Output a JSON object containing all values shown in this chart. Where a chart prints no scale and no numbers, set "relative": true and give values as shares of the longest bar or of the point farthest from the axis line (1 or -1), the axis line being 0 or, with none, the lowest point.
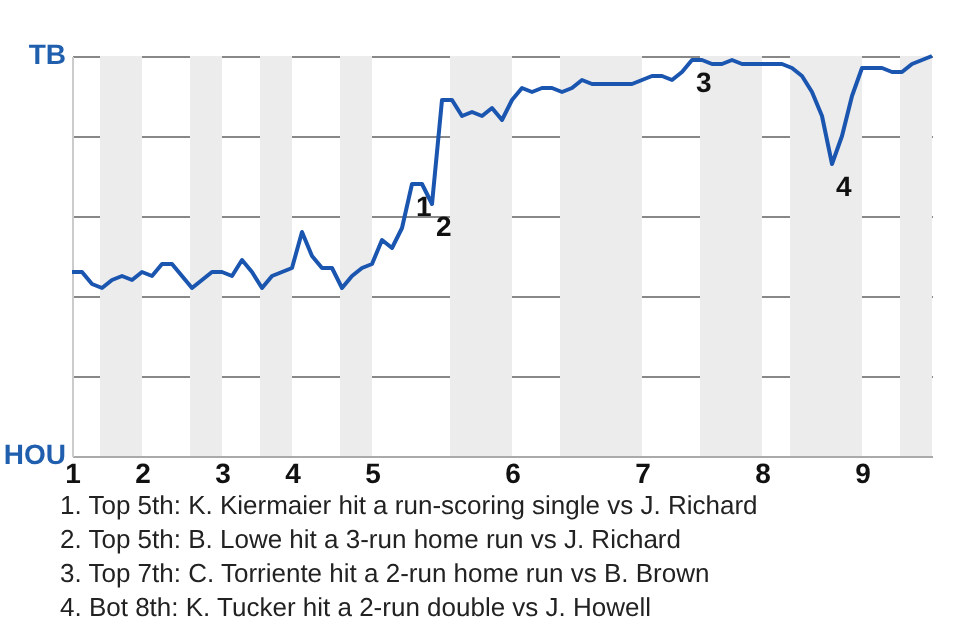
{
  "chart_data": {
    "type": "line",
    "relative": true,
    "categories": [
      "1",
      null,
      null,
      null,
      null,
      null,
      null,
      "2",
      null,
      null,
      null,
      null,
      null,
      null,
      null,
      "3",
      null,
      null,
      null,
      null,
      null,
      null,
      "4",
      null,
      null,
      null,
      null,
      null,
      null,
      null,
      "5",
      null,
      null,
      null,
      null,
      null,
      null,
      null,
      null,
      null,
      null,
      null,
      null,
      null,
      "6",
      null,
      null,
      null,
      null,
      null,
      null,
      null,
      null,
      null,
      null,
      null,
      null,
      "7",
      null,
      null,
      null,
      null,
      null,
      null,
      null,
      null,
      null,
      null,
      null,
      "8",
      null,
      null,
      null,
      null,
      null,
      null,
      null,
      null,
      null,
      "9",
      null,
      null,
      null,
      null,
      null,
      null,
      null
    ],
    "series": [
      {
        "color": "#1a56b0",
        "values": [
          0.46,
          0.46,
          0.43,
          0.42,
          0.44,
          0.45,
          0.44,
          0.46,
          0.45,
          0.48,
          0.48,
          0.45,
          0.42,
          0.44,
          0.46,
          0.46,
          0.45,
          0.49,
          0.46,
          0.42,
          0.45,
          0.46,
          0.47,
          0.56,
          0.5,
          0.47,
          0.47,
          0.42,
          0.45,
          0.47,
          0.48,
          0.54,
          0.52,
          0.57,
          0.68,
          0.68,
          0.63,
          0.89,
          0.89,
          0.85,
          0.86,
          0.85,
          0.87,
          0.84,
          0.89,
          0.92,
          0.91,
          0.92,
          0.92,
          0.91,
          0.92,
          0.94,
          0.93,
          0.93,
          0.93,
          0.93,
          0.93,
          0.94,
          0.95,
          0.95,
          0.94,
          0.96,
          0.99,
          0.99,
          0.98,
          0.98,
          0.99,
          0.98,
          0.98,
          0.98,
          0.98,
          0.98,
          0.97,
          0.95,
          0.91,
          0.85,
          0.73,
          0.8,
          0.9,
          0.97,
          0.97,
          0.97,
          0.96,
          0.96,
          0.98,
          0.99,
          1
        ]
      }
    ],
    "grid": "y",
    "annotations": [
      {
        "text": "1",
        "y": 0.68
      },
      {
        "text": "2",
        "y": 0.63
      },
      {
        "text": "3",
        "y": 0.99
      },
      {
        "text": "4",
        "y": 0.73
      },
      "TB",
      "HOU",
      "1. Top 5th: K. Kiermaier hit a run-scoring single vs J. Richard",
      "2. Top 5th: B. Lowe hit a 3-run home run vs J. Richard",
      "3. Top 7th: C. Torriente hit a 2-run home run vs B. Brown",
      "4. Bot 8th: K. Tucker hit a 2-run double vs J. Howell"
    ]
  }
}
